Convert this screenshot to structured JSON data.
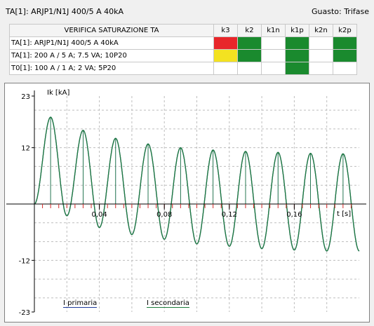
{
  "header": {
    "title": "TA[1]: ARJP1/N1J 400/5 A 40kA",
    "fault": "Guasto: Trifase"
  },
  "table": {
    "headers": [
      "VERIFICA SATURAZIONE TA",
      "k3",
      "k2",
      "k1n",
      "k1p",
      "k2n",
      "k2p"
    ],
    "rows": [
      {
        "label": "TA[1]: ARJP1/N1J 400/5 A 40kA",
        "cells": [
          "red",
          "green",
          "empty",
          "green",
          "empty",
          "green"
        ]
      },
      {
        "label": "TA[1]: 200 A / 5 A; 7.5 VA; 10P20",
        "cells": [
          "yellow",
          "green",
          "empty",
          "green",
          "empty",
          "green"
        ]
      },
      {
        "label": "T0[1]: 100 A / 1 A; 2 VA; 5P20",
        "cells": [
          "empty",
          "empty",
          "empty",
          "green",
          "empty",
          "empty"
        ]
      }
    ],
    "colors": {
      "red": "#e8262a",
      "yellow": "#f3e221",
      "green": "#1a8a2e",
      "empty": "#ffffff"
    }
  },
  "chart_data": {
    "type": "line",
    "ylabel": "Ik [kA]",
    "xlabel": "t [s]",
    "ylim": [
      -23,
      23
    ],
    "xlim": [
      0,
      0.2
    ],
    "ytick_labels": [
      "23",
      "12",
      "-12",
      "-23"
    ],
    "yticks": [
      23,
      12,
      -12,
      -23
    ],
    "xtick_labels": [
      "0,04",
      "0,08",
      "0,12",
      "0,16"
    ],
    "xticks": [
      0.04,
      0.08,
      0.12,
      0.16
    ],
    "grid": true,
    "series": [
      {
        "name": "I primaria",
        "color": "#1f3d9c",
        "x": [
          0.0,
          0.01,
          0.02,
          0.03,
          0.04,
          0.05,
          0.06,
          0.07,
          0.08,
          0.09,
          0.1,
          0.11,
          0.12,
          0.13,
          0.14,
          0.15,
          0.16,
          0.17,
          0.18,
          0.19,
          0.2
        ],
        "values": [
          0,
          18.5,
          -2.5,
          15.7,
          -5,
          14,
          -6.5,
          12.8,
          -7.5,
          12,
          -8.5,
          11.5,
          -9,
          11.2,
          -9.5,
          11,
          -9.8,
          10.8,
          -10,
          10.7,
          -10
        ]
      },
      {
        "name": "I secondaria",
        "color": "#1e7c3c",
        "x": [
          0.0,
          0.01,
          0.02,
          0.03,
          0.04,
          0.05,
          0.06,
          0.07,
          0.08,
          0.09,
          0.1,
          0.11,
          0.12,
          0.13,
          0.14,
          0.15,
          0.16,
          0.17,
          0.18,
          0.19,
          0.2
        ],
        "values": [
          0,
          18.5,
          -2.5,
          15.7,
          -5,
          14,
          -6.5,
          12.8,
          -7.5,
          12,
          -8.5,
          11.5,
          -9,
          11.2,
          -9.5,
          11,
          -9.8,
          10.8,
          -10,
          10.7,
          -10
        ]
      }
    ]
  }
}
